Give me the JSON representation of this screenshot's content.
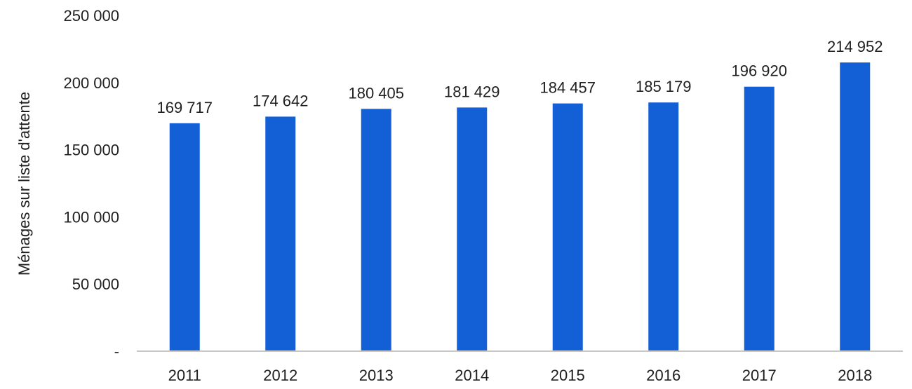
{
  "chart_data": {
    "type": "bar",
    "title": "",
    "xlabel": "",
    "ylabel": "Ménages sur liste d'attente",
    "categories": [
      "2011",
      "2012",
      "2013",
      "2014",
      "2015",
      "2016",
      "2017",
      "2018"
    ],
    "values": [
      169717,
      174642,
      180405,
      181429,
      184457,
      185179,
      196920,
      214952
    ],
    "value_labels": [
      "169 717",
      "174 642",
      "180 405",
      "181 429",
      "184 457",
      "185 179",
      "196 920",
      "214 952"
    ],
    "ylim": [
      0,
      250000
    ],
    "y_ticks": [
      {
        "value": 0,
        "label": "-"
      },
      {
        "value": 50000,
        "label": "50 000"
      },
      {
        "value": 100000,
        "label": "100 000"
      },
      {
        "value": 150000,
        "label": "150 000"
      },
      {
        "value": 200000,
        "label": "200 000"
      },
      {
        "value": 250000,
        "label": "250 000"
      }
    ],
    "grid": false,
    "legend": "none",
    "colors": {
      "bar": "#1360d6",
      "axis": "#c8c8c8",
      "text": "#1f1f1f"
    }
  }
}
